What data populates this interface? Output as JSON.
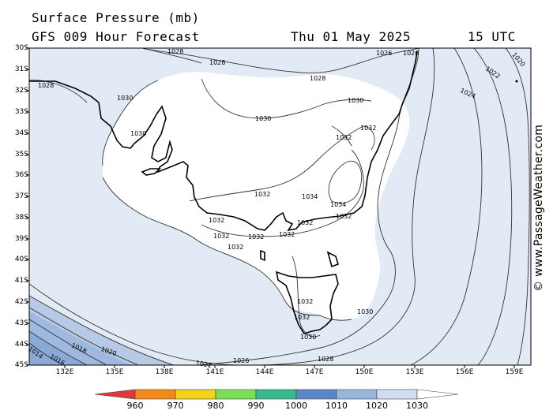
{
  "header": {
    "title": "Surface Pressure (mb)",
    "forecast": "GFS 009 Hour Forecast",
    "date": "Thu 01 May 2025",
    "time": "15 UTC"
  },
  "credit": "© www.PassageWeather.com",
  "lat_labels": [
    "30S",
    "31S",
    "32S",
    "33S",
    "34S",
    "35S",
    "36S",
    "37S",
    "38S",
    "39S",
    "40S",
    "41S",
    "42S",
    "43S",
    "44S",
    "45S"
  ],
  "lon_labels": [
    "132E",
    "135E",
    "138E",
    "141E",
    "144E",
    "147E",
    "150E",
    "153E",
    "156E",
    "159E"
  ],
  "scale": {
    "colors": [
      "#e03a3a",
      "#f08a1a",
      "#f2d21a",
      "#7ddc5a",
      "#3ab88e",
      "#5a86c8",
      "#98b6dc",
      "#d0dcef"
    ],
    "labels": [
      "960",
      "970",
      "980",
      "990",
      "1000",
      "1010",
      "1020",
      "1030"
    ]
  },
  "isobar_labels": [
    {
      "text": "1028"
    },
    {
      "text": "1028"
    },
    {
      "text": "1028"
    },
    {
      "text": "1028"
    },
    {
      "text": "1026"
    },
    {
      "text": "1026"
    },
    {
      "text": "1020"
    },
    {
      "text": "1022"
    },
    {
      "text": "1024"
    },
    {
      "text": "1030"
    },
    {
      "text": "1030"
    },
    {
      "text": "1030"
    },
    {
      "text": "1030"
    },
    {
      "text": "1032"
    },
    {
      "text": "1032"
    },
    {
      "text": "1032"
    },
    {
      "text": "1034"
    },
    {
      "text": "1034"
    },
    {
      "text": "1032"
    },
    {
      "text": "1032"
    },
    {
      "text": "1032"
    },
    {
      "text": "1032"
    },
    {
      "text": "1032"
    },
    {
      "text": "1032"
    },
    {
      "text": "1032"
    },
    {
      "text": "1032"
    },
    {
      "text": "1032"
    },
    {
      "text": "1030"
    },
    {
      "text": "1030"
    },
    {
      "text": "1028"
    },
    {
      "text": "1026"
    },
    {
      "text": "1022"
    },
    {
      "text": "1020"
    },
    {
      "text": "1018"
    },
    {
      "text": "1016"
    },
    {
      "text": "1014"
    }
  ]
}
